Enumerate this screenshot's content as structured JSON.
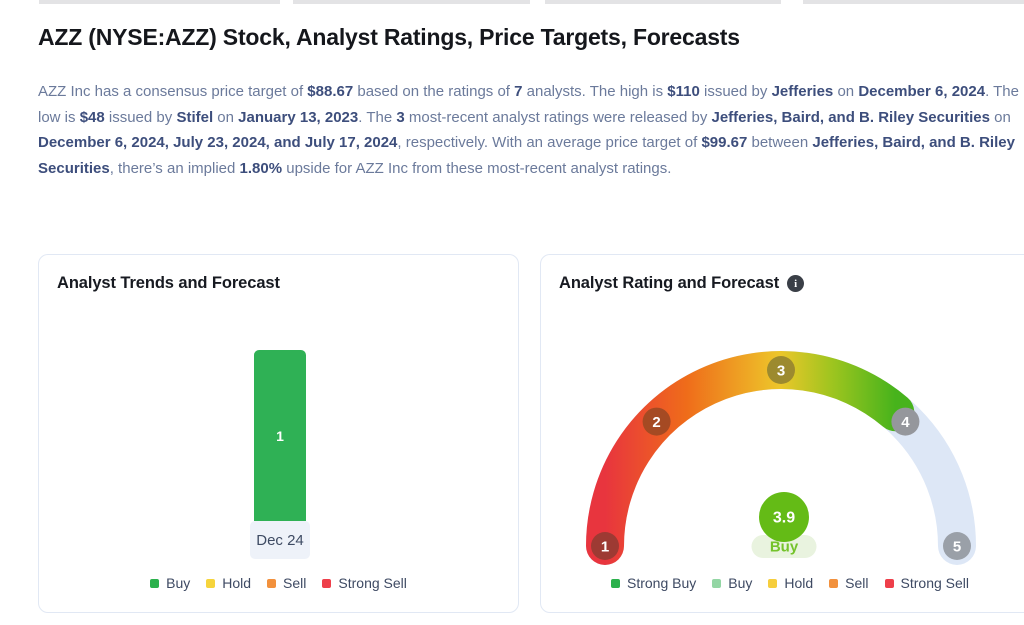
{
  "page": {
    "title": "AZZ (NYSE:AZZ) Stock, Analyst Ratings, Price Targets, Forecasts"
  },
  "decor": {
    "tab_strip_color": "#e3e3e5"
  },
  "summary": {
    "segments": [
      {
        "text": "AZZ Inc has a consensus price target of ",
        "bold": false
      },
      {
        "text": "$88.67",
        "bold": true
      },
      {
        "text": " based on the ratings of ",
        "bold": false
      },
      {
        "text": "7",
        "bold": true
      },
      {
        "text": " analysts. The high is ",
        "bold": false
      },
      {
        "text": "$110",
        "bold": true
      },
      {
        "text": " issued by ",
        "bold": false
      },
      {
        "text": "Jefferies",
        "bold": true
      },
      {
        "text": " on ",
        "bold": false
      },
      {
        "text": "December 6, 2024",
        "bold": true
      },
      {
        "text": ". The low is ",
        "bold": false
      },
      {
        "text": "$48",
        "bold": true
      },
      {
        "text": " issued by ",
        "bold": false
      },
      {
        "text": "Stifel",
        "bold": true
      },
      {
        "text": " on ",
        "bold": false
      },
      {
        "text": "January 13, 2023",
        "bold": true
      },
      {
        "text": ". The ",
        "bold": false
      },
      {
        "text": "3",
        "bold": true
      },
      {
        "text": " most-recent analyst ratings were released by ",
        "bold": false
      },
      {
        "text": "Jefferies, Baird, and B. Riley Securities",
        "bold": true
      },
      {
        "text": " on ",
        "bold": false
      },
      {
        "text": "December 6, 2024, July 23, 2024, and July 17, 2024",
        "bold": true
      },
      {
        "text": ", respectively. With an average price target of ",
        "bold": false
      },
      {
        "text": "$99.67",
        "bold": true
      },
      {
        "text": " between ",
        "bold": false
      },
      {
        "text": "Jefferies, Baird, and B. Riley Securities",
        "bold": true
      },
      {
        "text": ", there’s an implied ",
        "bold": false
      },
      {
        "text": "1.80%",
        "bold": true
      },
      {
        "text": " upside for AZZ Inc from these most-recent analyst ratings.",
        "bold": false
      }
    ]
  },
  "trends_card": {
    "title": "Analyst Trends and Forecast",
    "chart": {
      "bar_value": "1",
      "bar_color": "#2fb155",
      "x_label": "Dec 24",
      "axis_bg": "#eef2f9"
    },
    "legend": [
      {
        "label": "Buy",
        "color": "#2bb14c"
      },
      {
        "label": "Hold",
        "color": "#f6d43c"
      },
      {
        "label": "Sell",
        "color": "#f2913d"
      },
      {
        "label": "Strong Sell",
        "color": "#ee3f4a"
      }
    ]
  },
  "rating_card": {
    "title": "Analyst Rating and Forecast",
    "info_icon": "i",
    "gauge": {
      "min": 1,
      "max": 5,
      "value": 3.9,
      "value_label": "3.9",
      "rating_label": "Buy",
      "track_color": "#dde7f6",
      "center_color": "#64bb16",
      "pill_bg": "#e9f3df",
      "pill_text_color": "#74c32b",
      "gradient": [
        "#e8353e",
        "#ef6c1a",
        "#edc62a",
        "#9fc51f",
        "#47b31c"
      ],
      "markers": [
        {
          "label": "1",
          "color": "#9d3a33"
        },
        {
          "label": "2",
          "color": "#a54a23"
        },
        {
          "label": "3",
          "color": "#9c8a2f"
        },
        {
          "label": "4",
          "color": "#95979c"
        },
        {
          "label": "5",
          "color": "#9aa0a8"
        }
      ]
    },
    "legend": [
      {
        "label": "Strong Buy",
        "color": "#2bb14c"
      },
      {
        "label": "Buy",
        "color": "#93d6a4"
      },
      {
        "label": "Hold",
        "color": "#f6ce3d"
      },
      {
        "label": "Sell",
        "color": "#f2913d"
      },
      {
        "label": "Strong Sell",
        "color": "#ee3f4a"
      }
    ]
  },
  "chart_data": [
    {
      "type": "bar",
      "title": "Analyst Trends and Forecast",
      "categories": [
        "Dec 24"
      ],
      "series": [
        {
          "name": "Buy",
          "values": [
            1
          ]
        },
        {
          "name": "Hold",
          "values": [
            0
          ]
        },
        {
          "name": "Sell",
          "values": [
            0
          ]
        },
        {
          "name": "Strong Sell",
          "values": [
            0
          ]
        }
      ],
      "legend_position": "bottom",
      "data_labels": [
        "1"
      ]
    },
    {
      "type": "gauge",
      "title": "Analyst Rating and Forecast",
      "min": 1,
      "max": 5,
      "value": 3.9,
      "value_rating": "Buy",
      "ticks": [
        1,
        2,
        3,
        4,
        5
      ],
      "legend": [
        "Strong Buy",
        "Buy",
        "Hold",
        "Sell",
        "Strong Sell"
      ],
      "legend_position": "bottom"
    }
  ]
}
